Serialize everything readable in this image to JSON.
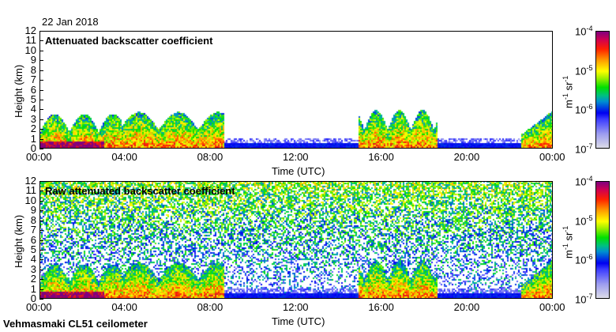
{
  "date": "22 Jan 2018",
  "footer": "Vehmasmaki CL51 ceilometer",
  "chart_data": [
    {
      "type": "heatmap",
      "title": "Attenuated backscatter coefficient",
      "xlabel": "Time (UTC)",
      "ylabel": "Height (km)",
      "xticks": [
        "00:00",
        "04:00",
        "08:00",
        "12:00",
        "16:00",
        "20:00",
        "00:00"
      ],
      "xlim_hours": [
        0,
        24
      ],
      "yticks": [
        "0",
        "1",
        "2",
        "3",
        "4",
        "5",
        "6",
        "7",
        "8",
        "9",
        "10",
        "11",
        "12"
      ],
      "ylim": [
        0,
        12
      ],
      "colorbar": {
        "label": "m-1 sr-1",
        "scale": "log",
        "ticks": [
          "10-7",
          "10-6",
          "10-5",
          "10-4"
        ],
        "range": [
          1e-07,
          0.0001
        ]
      }
    },
    {
      "type": "heatmap",
      "title": "Raw attenuated backscatter coefficient",
      "xlabel": "Time (UTC)",
      "ylabel": "Height (km)",
      "xticks": [
        "00:00",
        "04:00",
        "08:00",
        "12:00",
        "16:00",
        "20:00",
        "00:00"
      ],
      "xlim_hours": [
        0,
        24
      ],
      "yticks": [
        "0",
        "1",
        "2",
        "3",
        "4",
        "5",
        "6",
        "7",
        "8",
        "9",
        "10",
        "11",
        "12"
      ],
      "ylim": [
        0,
        12
      ],
      "colorbar": {
        "label": "m-1 sr-1",
        "scale": "log",
        "ticks": [
          "10-7",
          "10-6",
          "10-5",
          "10-4"
        ],
        "range": [
          1e-07,
          0.0001
        ]
      }
    }
  ]
}
